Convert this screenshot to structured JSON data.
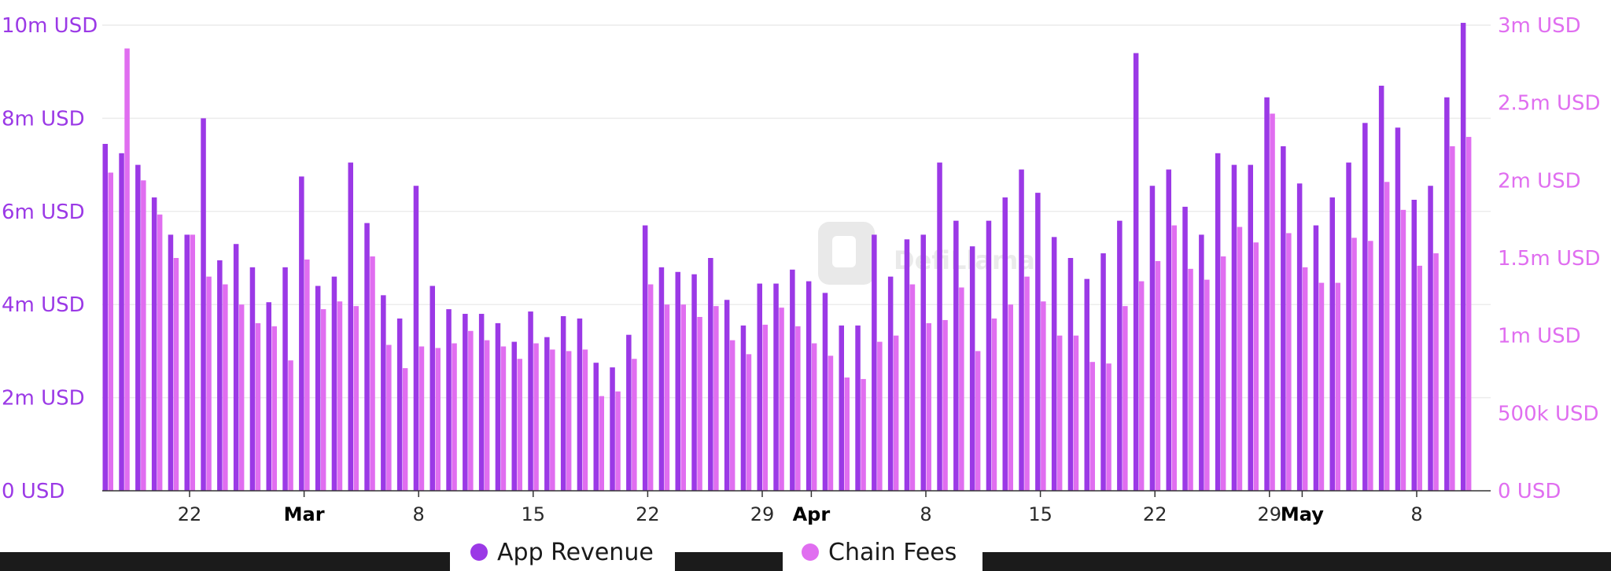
{
  "chart_data": {
    "type": "bar",
    "watermark": "DefiLlama",
    "y_left": {
      "min": 0,
      "max": 10000000,
      "ticks": [
        "0 USD",
        "2m USD",
        "4m USD",
        "6m USD",
        "8m USD",
        "10m USD"
      ],
      "color": "#9b39e6"
    },
    "y_right": {
      "min": 0,
      "max": 3000000,
      "ticks": [
        "0 USD",
        "500k USD",
        "1m USD",
        "1.5m USD",
        "2m USD",
        "2.5m USD",
        "3m USD"
      ],
      "color": "#e06ef0"
    },
    "x_ticks": [
      {
        "label": "22",
        "index": 5,
        "bold": false
      },
      {
        "label": "Mar",
        "index": 12,
        "bold": true
      },
      {
        "label": "8",
        "index": 19,
        "bold": false
      },
      {
        "label": "15",
        "index": 26,
        "bold": false
      },
      {
        "label": "22",
        "index": 33,
        "bold": false
      },
      {
        "label": "29",
        "index": 40,
        "bold": false
      },
      {
        "label": "Apr",
        "index": 43,
        "bold": true
      },
      {
        "label": "8",
        "index": 50,
        "bold": false
      },
      {
        "label": "15",
        "index": 57,
        "bold": false
      },
      {
        "label": "22",
        "index": 64,
        "bold": false
      },
      {
        "label": "29",
        "index": 71,
        "bold": false
      },
      {
        "label": "May",
        "index": 73,
        "bold": true
      },
      {
        "label": "8",
        "index": 80,
        "bold": false
      }
    ],
    "grid": true,
    "legend": "bottom-center",
    "series": [
      {
        "name": "App Revenue",
        "axis": "left",
        "color": "#9b39e6",
        "values": [
          7450000,
          7250000,
          7000000,
          6300000,
          5500000,
          5500000,
          8000000,
          4950000,
          5300000,
          4800000,
          4050000,
          4800000,
          6750000,
          4400000,
          4600000,
          7050000,
          5750000,
          4200000,
          3700000,
          6550000,
          4400000,
          3900000,
          3800000,
          3800000,
          3600000,
          3200000,
          3850000,
          3300000,
          3750000,
          3700000,
          2750000,
          2650000,
          3350000,
          5700000,
          4800000,
          4700000,
          4650000,
          5000000,
          4100000,
          3550000,
          4450000,
          4450000,
          4750000,
          4500000,
          4250000,
          3550000,
          3550000,
          5500000,
          4600000,
          5400000,
          5500000,
          7050000,
          5800000,
          5250000,
          5800000,
          6300000,
          6900000,
          6400000,
          5450000,
          5000000,
          4550000,
          5100000,
          5800000,
          9400000,
          6550000,
          6900000,
          6100000,
          5500000,
          7250000,
          7000000,
          7000000,
          8450000,
          7400000,
          6600000,
          5700000,
          6300000,
          7050000,
          7900000,
          8700000,
          7800000,
          6250000,
          6550000,
          8450000,
          10050000
        ]
      },
      {
        "name": "Chain Fees",
        "axis": "right",
        "color": "#e06ef0",
        "values": [
          2050000,
          2850000,
          2000000,
          1780000,
          1500000,
          1650000,
          1380000,
          1330000,
          1200000,
          1080000,
          1060000,
          840000,
          1490000,
          1170000,
          1220000,
          1190000,
          1510000,
          940000,
          790000,
          930000,
          920000,
          950000,
          1030000,
          970000,
          930000,
          850000,
          950000,
          910000,
          900000,
          910000,
          610000,
          640000,
          850000,
          1330000,
          1200000,
          1200000,
          1120000,
          1190000,
          970000,
          880000,
          1070000,
          1180000,
          1060000,
          950000,
          870000,
          730000,
          720000,
          960000,
          1000000,
          1330000,
          1080000,
          1100000,
          1310000,
          900000,
          1110000,
          1200000,
          1380000,
          1220000,
          1000000,
          1000000,
          830000,
          820000,
          1190000,
          1350000,
          1480000,
          1710000,
          1430000,
          1360000,
          1510000,
          1700000,
          1600000,
          2430000,
          1660000,
          1440000,
          1340000,
          1340000,
          1630000,
          1610000,
          1990000,
          1810000,
          1450000,
          1530000,
          2220000,
          2280000
        ]
      }
    ]
  },
  "legend": {
    "items": [
      "App Revenue",
      "Chain Fees"
    ]
  }
}
